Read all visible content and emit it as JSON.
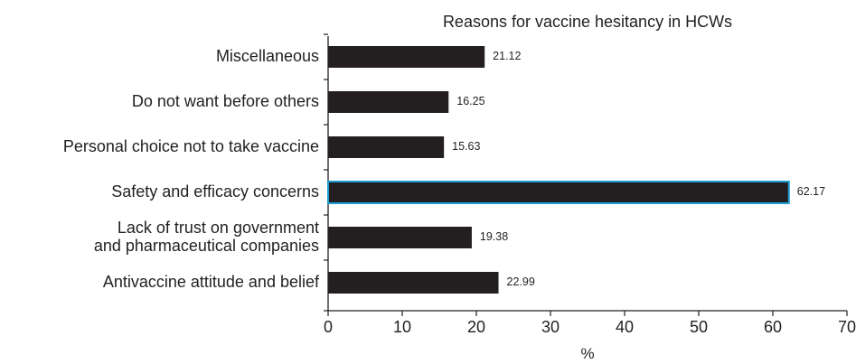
{
  "chart_data": {
    "type": "bar",
    "orientation": "horizontal",
    "title": "Reasons for vaccine hesitancy in HCWs",
    "xlabel": "%",
    "ylabel": "",
    "xlim": [
      0,
      70
    ],
    "xticks": [
      "0",
      "10",
      "20",
      "30",
      "40",
      "50",
      "60",
      "70"
    ],
    "categories": [
      "Miscellaneous",
      "Do not want before others",
      "Personal choice not to take vaccine",
      "Safety and efficacy concerns",
      "Lack of trust on government\nand pharmaceutical companies",
      "Antivaccine attitude and belief"
    ],
    "values": [
      21.12,
      16.25,
      15.63,
      62.17,
      19.38,
      22.99
    ],
    "value_labels": [
      "21.12",
      "16.25",
      "15.63",
      "62.17",
      "19.38",
      "22.99"
    ],
    "bar_color": "#231f20",
    "highlight_index": 3,
    "highlight_outline": "#1e9fd3",
    "grid": false,
    "legend": "none"
  }
}
